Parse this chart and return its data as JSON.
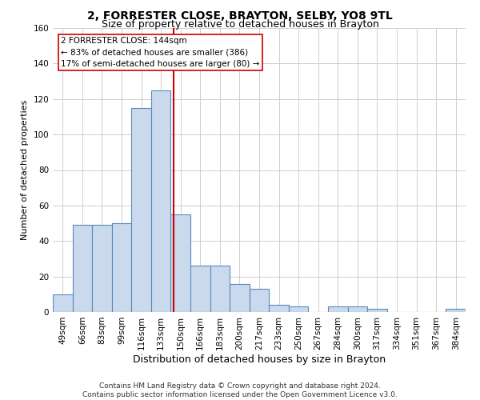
{
  "title": "2, FORRESTER CLOSE, BRAYTON, SELBY, YO8 9TL",
  "subtitle": "Size of property relative to detached houses in Brayton",
  "xlabel": "Distribution of detached houses by size in Brayton",
  "ylabel": "Number of detached properties",
  "categories": [
    "49sqm",
    "66sqm",
    "83sqm",
    "99sqm",
    "116sqm",
    "133sqm",
    "150sqm",
    "166sqm",
    "183sqm",
    "200sqm",
    "217sqm",
    "233sqm",
    "250sqm",
    "267sqm",
    "284sqm",
    "300sqm",
    "317sqm",
    "334sqm",
    "351sqm",
    "367sqm",
    "384sqm"
  ],
  "values": [
    10,
    49,
    49,
    50,
    115,
    125,
    55,
    26,
    26,
    16,
    13,
    4,
    3,
    0,
    3,
    3,
    2,
    0,
    0,
    0,
    2
  ],
  "bar_color": "#cad9ec",
  "bar_edge_color": "#5a8abf",
  "bar_linewidth": 0.8,
  "grid_color": "#c8c8c8",
  "property_line_color": "#cc0000",
  "annotation_text_line1": "2 FORRESTER CLOSE: 144sqm",
  "annotation_text_line2": "← 83% of detached houses are smaller (386)",
  "annotation_text_line3": "17% of semi-detached houses are larger (80) →",
  "annotation_box_color": "#cc0000",
  "ylim": [
    0,
    160
  ],
  "yticks": [
    0,
    20,
    40,
    60,
    80,
    100,
    120,
    140,
    160
  ],
  "footnote1": "Contains HM Land Registry data © Crown copyright and database right 2024.",
  "footnote2": "Contains public sector information licensed under the Open Government Licence v3.0.",
  "title_fontsize": 10,
  "subtitle_fontsize": 9,
  "ylabel_fontsize": 8,
  "xlabel_fontsize": 9,
  "tick_fontsize": 7.5,
  "annot_fontsize": 7.5,
  "footnote_fontsize": 6.5
}
